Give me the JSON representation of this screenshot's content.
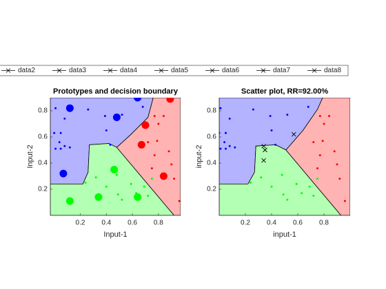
{
  "legend": {
    "entries": [
      "data2",
      "data3",
      "data4",
      "data5",
      "data6",
      "data7",
      "data8"
    ]
  },
  "chart_data": [
    {
      "type": "scatter",
      "title": "Prototypes and decision boundary",
      "xlabel": "Input-1",
      "ylabel": "Input-2",
      "xlim": [
        -0.03,
        0.97
      ],
      "ylim": [
        0,
        0.9
      ],
      "xticks": [
        0.2,
        0.4,
        0.6,
        0.8
      ],
      "yticks": [
        0.2,
        0.4,
        0.6,
        0.8
      ],
      "regions": [
        {
          "color": "#b3b3ff",
          "x": [
            -0.03,
            0.76,
            0.72,
            0.59,
            0.48,
            0.42,
            0.27,
            0.26,
            0.22,
            -0.03
          ],
          "y": [
            0.9,
            0.9,
            0.75,
            0.62,
            0.52,
            0.55,
            0.54,
            0.33,
            0.24,
            0.24
          ]
        },
        {
          "color": "#b3ffb3",
          "x": [
            -0.03,
            0.22,
            0.26,
            0.27,
            0.42,
            0.48,
            0.92,
            -0.03
          ],
          "y": [
            0.24,
            0.24,
            0.33,
            0.54,
            0.55,
            0.52,
            0,
            0
          ]
        },
        {
          "color": "#ffb3b3",
          "x": [
            0.76,
            0.97,
            0.97,
            0.92,
            0.48,
            0.59,
            0.72
          ],
          "y": [
            0.9,
            0.9,
            0,
            0,
            0.52,
            0.62,
            0.75
          ]
        }
      ],
      "series": [
        {
          "color": "#0000ff",
          "marker": "dot",
          "x": [
            0.01,
            0.08,
            0.0,
            0.01,
            0.05,
            0.08,
            0.12,
            0.04,
            0.05,
            0.26,
            0.39,
            0.4,
            0.43,
            0.52,
            0.68
          ],
          "values": [
            0.82,
            0.74,
            0.63,
            0.51,
            0.51,
            0.53,
            0.52,
            0.56,
            0.63,
            0.81,
            0.76,
            0.65,
            0.54,
            0.77,
            0.83
          ]
        },
        {
          "color": "#ff0000",
          "marker": "dot",
          "x": [
            0.77,
            0.84,
            0.8,
            0.79,
            0.77,
            0.75,
            0.88,
            0.9,
            0.92,
            0.96,
            0.72
          ],
          "values": [
            0.76,
            0.76,
            0.7,
            0.57,
            0.46,
            0.36,
            0.49,
            0.39,
            0.28,
            0.11,
            0.56
          ]
        },
        {
          "color": "#00ff00",
          "marker": "dot",
          "x": [
            0.24,
            0.32,
            0.4,
            0.48,
            0.49,
            0.52,
            0.59,
            0.69,
            0.72,
            0.75,
            0.63
          ],
          "values": [
            0.25,
            0.29,
            0.22,
            0.31,
            0.16,
            0.12,
            0.24,
            0.22,
            0.15,
            0.28,
            0.17
          ]
        },
        {
          "color": "#0000ff",
          "marker": "circle",
          "x": [
            0.12,
            0.48,
            0.07,
            0.64
          ],
          "values": [
            0.82,
            0.75,
            0.32,
            0.9
          ]
        },
        {
          "color": "#ff0000",
          "marker": "circle",
          "x": [
            0.89,
            0.7,
            0.67,
            0.84
          ],
          "values": [
            0.89,
            0.69,
            0.54,
            0.3
          ]
        },
        {
          "color": "#00ff00",
          "marker": "circle",
          "x": [
            0.46,
            0.34,
            0.64,
            0.12
          ],
          "values": [
            0.35,
            0.14,
            0.14,
            0.11
          ]
        }
      ]
    },
    {
      "type": "scatter",
      "title": "Scatter plot, RR=92.00%",
      "xlabel": "input-1",
      "ylabel": "input-2",
      "xlim": [
        0,
        1
      ],
      "ylim": [
        0,
        0.9
      ],
      "xticks": [
        0.2,
        0.4,
        0.6,
        0.8
      ],
      "yticks": [
        0.2,
        0.4,
        0.6,
        0.8
      ],
      "regions": [
        {
          "color": "#b3b3ff",
          "x": [
            0,
            0.79,
            0.75,
            0.64,
            0.51,
            0.43,
            0.28,
            0.27,
            0.22,
            0
          ],
          "y": [
            0.9,
            0.9,
            0.81,
            0.65,
            0.5,
            0.54,
            0.53,
            0.33,
            0.24,
            0.24
          ]
        },
        {
          "color": "#b3ffb3",
          "x": [
            0,
            0.22,
            0.27,
            0.28,
            0.43,
            0.51,
            0.93,
            0
          ],
          "y": [
            0.24,
            0.24,
            0.33,
            0.53,
            0.54,
            0.5,
            0,
            0
          ]
        },
        {
          "color": "#ffb3b3",
          "x": [
            0.79,
            1,
            1,
            0.93,
            0.51,
            0.64,
            0.75
          ],
          "y": [
            0.9,
            0.9,
            0,
            0,
            0.5,
            0.65,
            0.81
          ]
        }
      ],
      "series": [
        {
          "color": "#0000ff",
          "marker": "dot",
          "x": [
            0.01,
            0.08,
            0.0,
            0.01,
            0.05,
            0.08,
            0.12,
            0.04,
            0.05,
            0.26,
            0.39,
            0.4,
            0.43,
            0.52,
            0.68
          ],
          "values": [
            0.82,
            0.74,
            0.63,
            0.51,
            0.51,
            0.53,
            0.52,
            0.56,
            0.63,
            0.81,
            0.76,
            0.65,
            0.54,
            0.77,
            0.83
          ]
        },
        {
          "color": "#ff0000",
          "marker": "dot",
          "x": [
            0.77,
            0.84,
            0.8,
            0.79,
            0.77,
            0.75,
            0.88,
            0.9,
            0.92,
            0.96,
            0.72
          ],
          "values": [
            0.76,
            0.76,
            0.7,
            0.57,
            0.46,
            0.36,
            0.49,
            0.39,
            0.28,
            0.11,
            0.56
          ]
        },
        {
          "color": "#00ff00",
          "marker": "dot",
          "x": [
            0.24,
            0.32,
            0.4,
            0.48,
            0.49,
            0.52,
            0.59,
            0.69,
            0.72,
            0.75,
            0.63
          ],
          "values": [
            0.25,
            0.29,
            0.22,
            0.31,
            0.16,
            0.12,
            0.24,
            0.22,
            0.15,
            0.28,
            0.17
          ]
        },
        {
          "color": "#000000",
          "marker": "x",
          "x": [
            0.34,
            0.35,
            0.34,
            0.57
          ],
          "values": [
            0.53,
            0.5,
            0.42,
            0.62
          ]
        }
      ]
    }
  ]
}
